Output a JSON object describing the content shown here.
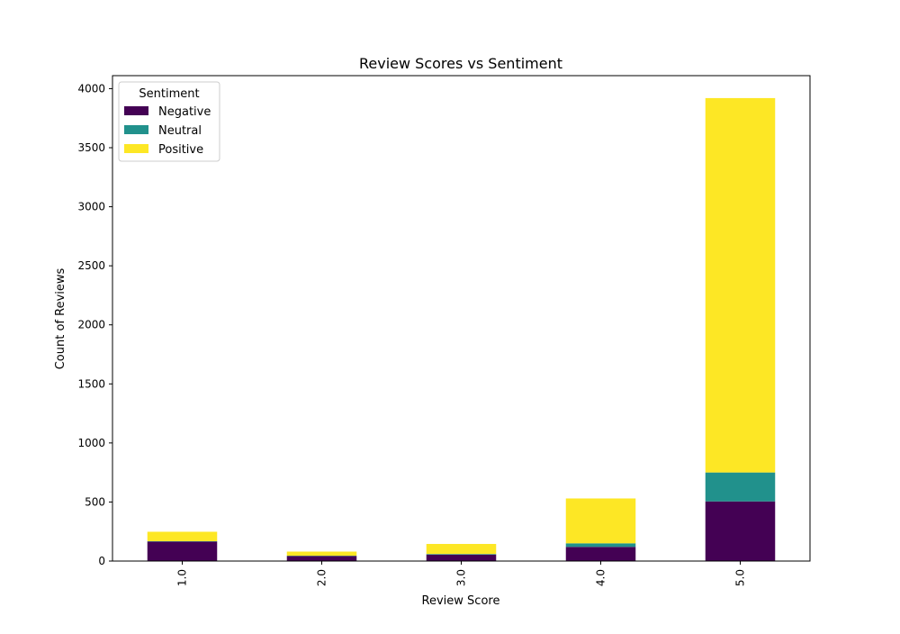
{
  "chart_data": {
    "type": "bar",
    "stacked": true,
    "title": "Review Scores vs Sentiment",
    "xlabel": "Review Score",
    "ylabel": "Count of Reviews",
    "categories": [
      "1.0",
      "2.0",
      "3.0",
      "4.0",
      "5.0"
    ],
    "ylim": [
      0,
      4110
    ],
    "yticks": [
      0,
      500,
      1000,
      1500,
      2000,
      2500,
      3000,
      3500,
      4000
    ],
    "grid": false,
    "legend": {
      "title": "Sentiment",
      "placement": "top-left"
    },
    "series": [
      {
        "name": "Negative",
        "color": "#440154",
        "values": [
          165,
          42,
          55,
          120,
          505
        ]
      },
      {
        "name": "Neutral",
        "color": "#21918c",
        "values": [
          3,
          3,
          5,
          30,
          245
        ]
      },
      {
        "name": "Positive",
        "color": "#fde725",
        "values": [
          80,
          35,
          85,
          380,
          3170
        ]
      }
    ]
  }
}
